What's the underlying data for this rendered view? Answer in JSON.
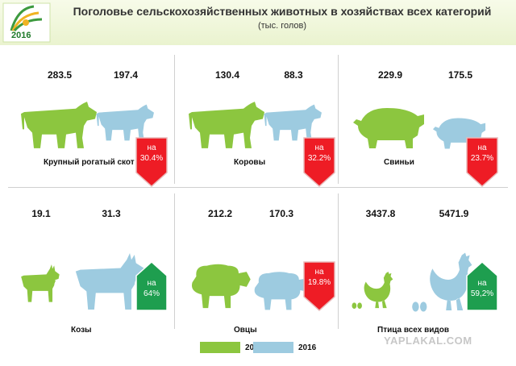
{
  "header": {
    "title": "Поголовье сельскохозяйственных животных в хозяйствах всех категорий",
    "subtitle": "(тыс. голов)",
    "logo_year": "2016"
  },
  "colors": {
    "year_2006": "#8cc63f",
    "year_2016": "#9dcbe0",
    "decrease": "#ee1c25",
    "increase": "#1e9e4f",
    "badge_border": "#e9b8b8"
  },
  "chart_data": [
    {
      "type": "bar",
      "category": "Крупный рогатый скот",
      "animal": "cow-icon",
      "values": {
        "2006": 283.5,
        "2016": 197.4
      },
      "value_labels": [
        "283.5",
        "197.4"
      ],
      "change": {
        "direction": "decrease",
        "prefix": "на",
        "value": "30.4%"
      }
    },
    {
      "type": "bar",
      "category": "Коровы",
      "animal": "cow-icon",
      "values": {
        "2006": 130.4,
        "2016": 88.3
      },
      "value_labels": [
        "130.4",
        "88.3"
      ],
      "change": {
        "direction": "decrease",
        "prefix": "на",
        "value": "32.2%"
      }
    },
    {
      "type": "bar",
      "category": "Свиньи",
      "animal": "pig-icon",
      "values": {
        "2006": 229.9,
        "2016": 175.5
      },
      "value_labels": [
        "229.9",
        "175.5"
      ],
      "change": {
        "direction": "decrease",
        "prefix": "на",
        "value": "23.7%"
      }
    },
    {
      "type": "bar",
      "category": "Козы",
      "animal": "goat-icon",
      "values": {
        "2006": 19.1,
        "2016": 31.3
      },
      "value_labels": [
        "19.1",
        "31.3"
      ],
      "change": {
        "direction": "increase",
        "prefix": "на",
        "value": "64%"
      }
    },
    {
      "type": "bar",
      "category": "Овцы",
      "animal": "sheep-icon",
      "values": {
        "2006": 212.2,
        "2016": 170.3
      },
      "value_labels": [
        "212.2",
        "170.3"
      ],
      "change": {
        "direction": "decrease",
        "prefix": "на",
        "value": "19.8%"
      }
    },
    {
      "type": "bar",
      "category": "Птица всех видов",
      "animal": "hen-icon",
      "values": {
        "2006": 3437.8,
        "2016": 5471.9
      },
      "value_labels": [
        "3437.8",
        "5471.9"
      ],
      "change": {
        "direction": "increase",
        "prefix": "на",
        "value": "59,2%"
      }
    }
  ],
  "legend": [
    {
      "label": "2006",
      "color": "#8cc63f"
    },
    {
      "label": "2016",
      "color": "#9dcbe0"
    }
  ],
  "watermark": "YAPLAKAL.COM"
}
